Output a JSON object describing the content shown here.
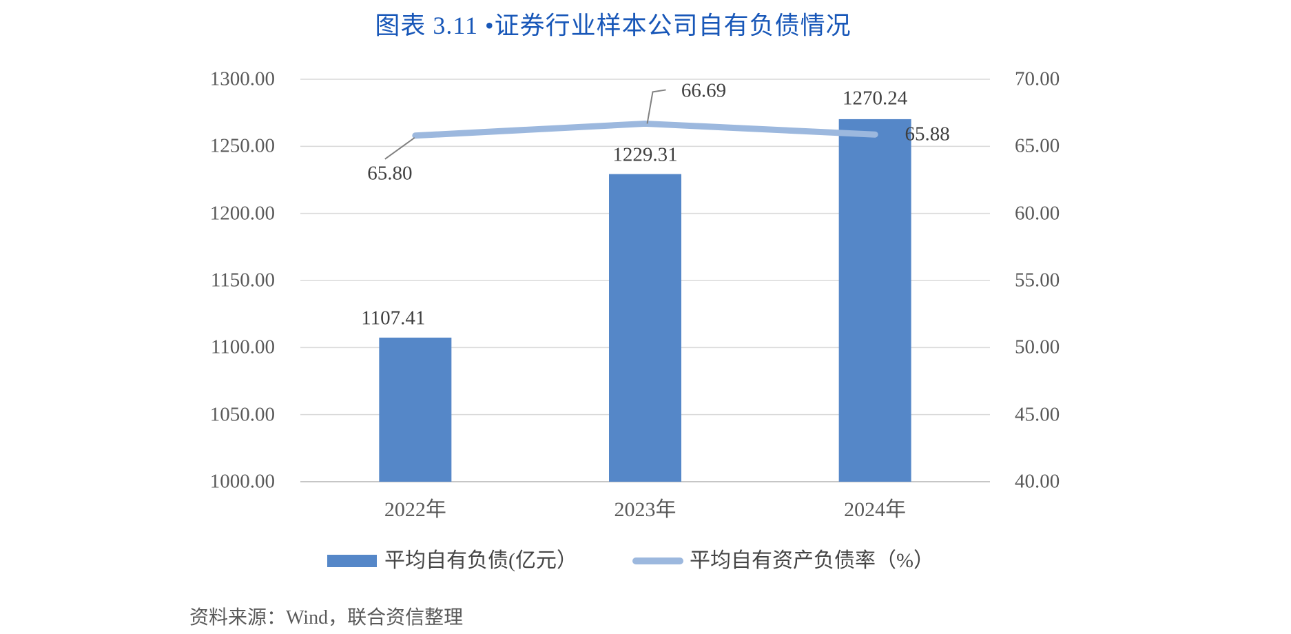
{
  "title": "图表 3.11 •证券行业样本公司自有负债情况",
  "source": "资料来源：Wind，联合资信整理",
  "colors": {
    "title": "#1857b8",
    "bar": "#5587c8",
    "line": "#9cb8de",
    "gridline": "#d9d9d9",
    "axis_line": "#c6c6c6",
    "leader": "#808080",
    "tick_text": "#595959",
    "label_text": "#3f3f3f"
  },
  "chart_data": {
    "type": "bar",
    "categories": [
      "2022年",
      "2023年",
      "2024年"
    ],
    "series": [
      {
        "name": "平均自有负债(亿元）",
        "type": "bar",
        "axis": "left",
        "values": [
          1107.41,
          1229.31,
          1270.24
        ],
        "labels": [
          "1107.41",
          "1229.31",
          "1270.24"
        ],
        "color": "#5587c8"
      },
      {
        "name": "平均自有资产负债率（%）",
        "type": "line",
        "axis": "right",
        "values": [
          65.8,
          66.69,
          65.88
        ],
        "labels": [
          "65.80",
          "66.69",
          "65.88"
        ],
        "color": "#9cb8de"
      }
    ],
    "left_axis": {
      "min": 1000,
      "max": 1300,
      "step": 50,
      "ticks": [
        "1300.00",
        "1250.00",
        "1200.00",
        "1150.00",
        "1100.00",
        "1050.00",
        "1000.00"
      ]
    },
    "right_axis": {
      "min": 40,
      "max": 70,
      "step": 5,
      "ticks": [
        "70.00",
        "65.00",
        "60.00",
        "55.00",
        "50.00",
        "45.00",
        "40.00"
      ]
    },
    "grid": true,
    "legend_position": "bottom"
  }
}
